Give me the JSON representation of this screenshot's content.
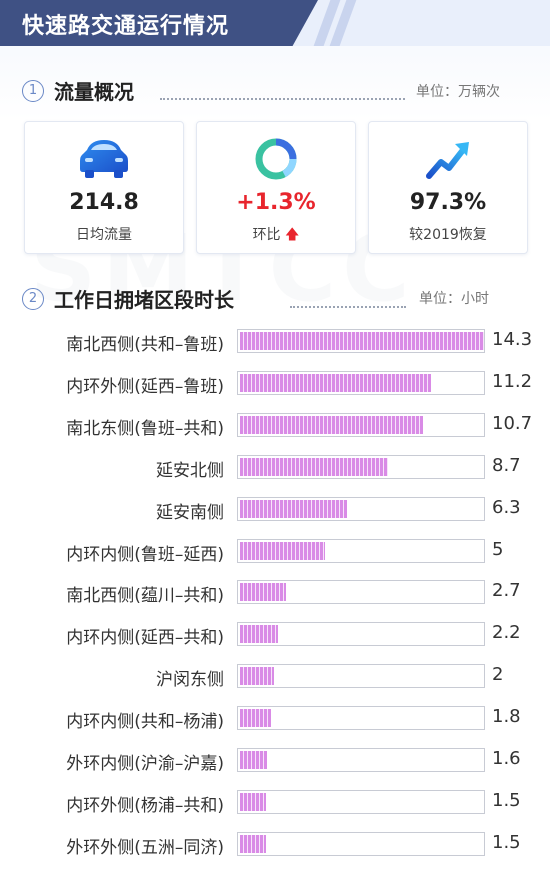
{
  "header": {
    "title": "快速路交通运行情况"
  },
  "watermark": "SMTCC",
  "section1": {
    "num": "1",
    "title": "流量概况",
    "unit": "单位：万辆次"
  },
  "cards": [
    {
      "icon": "car-icon",
      "value": "214.8",
      "label": "日均流量"
    },
    {
      "icon": "ring-chart-icon",
      "value": "+1.3%",
      "label": "环比"
    },
    {
      "icon": "trend-up-arrow-icon",
      "value": "97.3%",
      "label": "较2019恢复"
    }
  ],
  "colors": {
    "header": "#3f5184",
    "bar": "#d98be6",
    "increase": "#e8252d"
  },
  "section2": {
    "num": "2",
    "title": "工作日拥堵区段时长",
    "unit": "单位：小时"
  },
  "chart_data": {
    "type": "bar",
    "orientation": "horizontal",
    "title": "工作日拥堵区段时长",
    "unit": "小时",
    "xlim": [
      0,
      14.3
    ],
    "categories": [
      "南北西侧(共和–鲁班)",
      "内环外侧(延西–鲁班)",
      "南北东侧(鲁班–共和)",
      "延安北侧",
      "延安南侧",
      "内环内侧(鲁班–延西)",
      "南北西侧(蕴川–共和)",
      "内环内侧(延西–共和)",
      "沪闵东侧",
      "内环内侧(共和–杨浦)",
      "外环内侧(沪渝–沪嘉)",
      "内环外侧(杨浦–共和)",
      "外环外侧(五洲–同济)"
    ],
    "values": [
      14.3,
      11.2,
      10.7,
      8.7,
      6.3,
      5,
      2.7,
      2.2,
      2,
      1.8,
      1.6,
      1.5,
      1.5
    ],
    "labels": [
      "14.3",
      "11.2",
      "10.7",
      "8.7",
      "6.3",
      "5",
      "2.7",
      "2.2",
      "2",
      "1.8",
      "1.6",
      "1.5",
      "1.5"
    ]
  }
}
